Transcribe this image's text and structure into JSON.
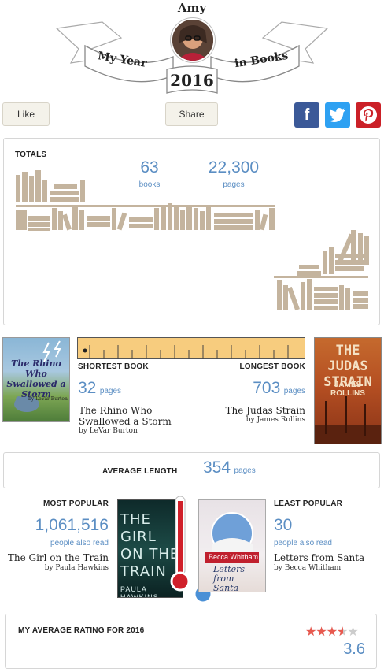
{
  "header": {
    "user_name": "Amy",
    "banner_left": "My Year",
    "banner_right": "in Books",
    "year": "2016"
  },
  "actions": {
    "like_label": "Like",
    "share_label": "Share"
  },
  "social": [
    {
      "icon": "facebook-icon",
      "glyph": "f",
      "color": "#3b5998"
    },
    {
      "icon": "twitter-icon",
      "glyph": "t",
      "color": "#2ea1f2"
    },
    {
      "icon": "pinterest-icon",
      "glyph": "p",
      "color": "#cb2027"
    }
  ],
  "totals": {
    "heading": "TOTALS",
    "books_count": "63",
    "books_label": "books",
    "pages_count": "22,300",
    "pages_label": "pages"
  },
  "shortest": {
    "heading": "SHORTEST BOOK",
    "pages": "32",
    "pages_label": "pages",
    "title": "The Rhino Who Swallowed a Storm",
    "author": "by LeVar Burton",
    "cover_text": "The Rhino Who Swallowed a Storm"
  },
  "longest": {
    "heading": "LONGEST BOOK",
    "pages": "703",
    "pages_label": "pages",
    "title": "The Judas Strain",
    "author": "by James Rollins",
    "cover_title": "THE JUDAS STRAIN",
    "cover_author": "JAMES ROLLINS"
  },
  "average": {
    "heading": "AVERAGE LENGTH",
    "value": "354",
    "label": "pages"
  },
  "most_popular": {
    "heading": "MOST POPULAR",
    "count": "1,061,516",
    "label": "people also read",
    "title": "The Girl on the Train",
    "author": "by Paula Hawkins",
    "cover_text": "THE GIRL ON THE TRAIN",
    "cover_author": "PAULA HAWKINS"
  },
  "least_popular": {
    "heading": "LEAST POPULAR",
    "count": "30",
    "label": "people also read",
    "title": "Letters from Santa",
    "author": "by Becca Whitham",
    "cover_author": "Becca Whitham",
    "cover_text": "Letters from Santa"
  },
  "rating": {
    "heading": "MY AVERAGE RATING FOR 2016",
    "value": "3.6",
    "stars": 3.6,
    "max_stars": 5
  },
  "colors": {
    "accent": "#5b8ec3",
    "book_stack": "#c4b49e",
    "ruler": "#f7cc7e",
    "star": "#e8594f"
  }
}
